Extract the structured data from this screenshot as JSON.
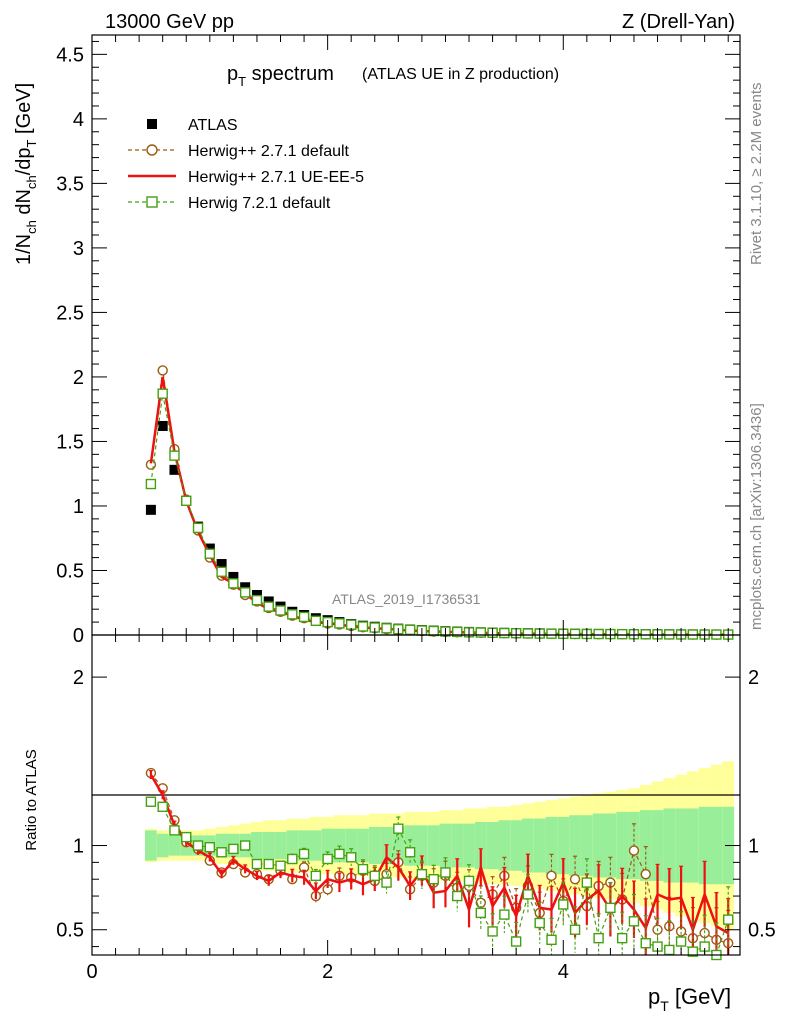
{
  "header": {
    "left": "13000 GeV pp",
    "right": "Z (Drell-Yan)"
  },
  "side_labels": {
    "rivet": "Rivet 3.1.10, ≥ 2.2M events",
    "mcplots": "mcplots.cern.ch [arXiv:1306.3436]"
  },
  "chart_data": [
    {
      "type": "scatter",
      "title_main": "p",
      "title_sub": "T",
      "title_rest": " spectrum",
      "title_note": "(ATLAS UE in Z production)",
      "watermark": "ATLAS_2019_I1736531",
      "ylabel": {
        "p1": "1/N",
        "s1": "ch",
        "p2": " dN",
        "s2": "ch",
        "p3": "/dp",
        "s3": "T",
        "p4": " [GeV]"
      },
      "xlim": [
        0,
        5.5
      ],
      "ylim": [
        0,
        4.65
      ],
      "yticks": [
        "0",
        "0.5",
        "1",
        "1.5",
        "2",
        "2.5",
        "3",
        "3.5",
        "4",
        "4.5"
      ],
      "legend_position": "top-left",
      "legend": [
        {
          "name": "ATLAS",
          "color": "#000000",
          "marker": "filled-square",
          "line": "none"
        },
        {
          "name": "Herwig++ 2.7.1 default",
          "color": "#9a5a10",
          "marker": "open-circle",
          "line": "dashed"
        },
        {
          "name": "Herwig++ 2.7.1 UE-EE-5",
          "color": "#ee1111",
          "marker": "none",
          "line": "solid"
        },
        {
          "name": "Herwig 7.2.1 default",
          "color": "#44a010",
          "marker": "open-square",
          "line": "dashed"
        }
      ],
      "x": [
        0.5,
        0.6,
        0.7,
        0.8,
        0.9,
        1.0,
        1.1,
        1.2,
        1.3,
        1.4,
        1.5,
        1.6,
        1.7,
        1.8,
        1.9,
        2.0,
        2.1,
        2.2,
        2.3,
        2.4,
        2.5,
        2.6,
        2.7,
        2.8,
        2.9,
        3.0,
        3.1,
        3.2,
        3.3,
        3.4,
        3.5,
        3.6,
        3.7,
        3.8,
        3.9,
        4.0,
        4.1,
        4.2,
        4.3,
        4.4,
        4.5,
        4.6,
        4.7,
        4.8,
        4.9,
        5.0,
        5.1,
        5.2,
        5.3,
        5.4
      ],
      "series": [
        {
          "name": "ATLAS",
          "values": [
            0.97,
            1.62,
            1.28,
            1.04,
            0.84,
            0.67,
            0.55,
            0.45,
            0.37,
            0.31,
            0.26,
            0.22,
            0.18,
            0.155,
            0.13,
            0.115,
            0.1,
            0.085,
            0.072,
            0.064,
            0.056,
            0.049,
            0.043,
            0.038,
            0.034,
            0.03,
            0.027,
            0.024,
            0.021,
            0.019,
            0.017,
            0.015,
            0.014,
            0.013,
            0.012,
            0.011,
            0.01,
            0.009,
            0.0085,
            0.008,
            0.0075,
            0.007,
            0.0065,
            0.006,
            0.0055,
            0.005,
            0.0048,
            0.0045,
            0.0042,
            0.004
          ]
        },
        {
          "name": "Herwig++ 2.7.1 default",
          "values": [
            1.32,
            2.05,
            1.44,
            1.05,
            0.81,
            0.6,
            0.46,
            0.39,
            0.31,
            0.26,
            0.21,
            0.18,
            0.15,
            0.13,
            0.11,
            0.09,
            0.082,
            0.07,
            0.06,
            0.052,
            0.045,
            0.04,
            0.035,
            0.031,
            0.027,
            0.024,
            0.021,
            0.019,
            0.017,
            0.015,
            0.014,
            0.012,
            0.011,
            0.01,
            0.009,
            0.008,
            0.0075,
            0.007,
            0.0065,
            0.006,
            0.0055,
            0.005,
            0.0045,
            0.0042,
            0.004,
            0.0038,
            0.0035,
            0.0032,
            0.003,
            0.0028
          ]
        },
        {
          "name": "Herwig++ 2.7.1 UE-EE-5",
          "values": [
            1.33,
            2.0,
            1.42,
            1.04,
            0.8,
            0.62,
            0.45,
            0.4,
            0.32,
            0.25,
            0.2,
            0.18,
            0.15,
            0.12,
            0.1,
            0.09,
            0.08,
            0.068,
            0.058,
            0.052,
            0.048,
            0.042,
            0.035,
            0.031,
            0.028,
            0.025,
            0.022,
            0.019,
            0.017,
            0.015,
            0.013,
            0.012,
            0.011,
            0.01,
            0.009,
            0.008,
            0.0075,
            0.007,
            0.0065,
            0.006,
            0.0055,
            0.005,
            0.0045,
            0.0042,
            0.004,
            0.0038,
            0.0035,
            0.0032,
            0.003,
            0.0028
          ]
        },
        {
          "name": "Herwig 7.2.1 default",
          "values": [
            1.17,
            1.87,
            1.39,
            1.04,
            0.83,
            0.63,
            0.49,
            0.4,
            0.33,
            0.27,
            0.22,
            0.19,
            0.16,
            0.14,
            0.11,
            0.1,
            0.09,
            0.08,
            0.066,
            0.058,
            0.052,
            0.045,
            0.04,
            0.035,
            0.031,
            0.027,
            0.024,
            0.021,
            0.019,
            0.017,
            0.015,
            0.014,
            0.012,
            0.011,
            0.01,
            0.009,
            0.0085,
            0.008,
            0.0075,
            0.007,
            0.0065,
            0.006,
            0.0055,
            0.005,
            0.0045,
            0.0042,
            0.004,
            0.0038,
            0.0035,
            0.0032
          ]
        }
      ]
    },
    {
      "type": "scatter",
      "xlabel_main": "p",
      "xlabel_sub": "T",
      "xlabel_unit": " [GeV]",
      "ylabel": "Ratio to ATLAS",
      "xlim": [
        0,
        5.5
      ],
      "ylim": [
        0.35,
        2.25
      ],
      "xticks": [
        "0",
        "2",
        "4"
      ],
      "yticks_left": [
        "0.5",
        "1",
        "2"
      ],
      "yticks_right": [
        "0.5",
        "1",
        "2"
      ],
      "x": [
        0.5,
        0.6,
        0.7,
        0.8,
        0.9,
        1.0,
        1.1,
        1.2,
        1.3,
        1.4,
        1.5,
        1.6,
        1.7,
        1.8,
        1.9,
        2.0,
        2.1,
        2.2,
        2.3,
        2.4,
        2.5,
        2.6,
        2.7,
        2.8,
        2.9,
        3.0,
        3.1,
        3.2,
        3.3,
        3.4,
        3.5,
        3.6,
        3.7,
        3.8,
        3.9,
        4.0,
        4.1,
        4.2,
        4.3,
        4.4,
        4.5,
        4.6,
        4.7,
        4.8,
        4.9,
        5.0,
        5.1,
        5.2,
        5.3,
        5.4
      ],
      "band_green_half": [
        0.09,
        0.07,
        0.06,
        0.06,
        0.06,
        0.06,
        0.07,
        0.07,
        0.07,
        0.08,
        0.08,
        0.08,
        0.09,
        0.09,
        0.09,
        0.1,
        0.1,
        0.1,
        0.1,
        0.11,
        0.11,
        0.11,
        0.12,
        0.12,
        0.12,
        0.13,
        0.13,
        0.13,
        0.14,
        0.14,
        0.15,
        0.15,
        0.16,
        0.16,
        0.17,
        0.17,
        0.18,
        0.18,
        0.19,
        0.19,
        0.2,
        0.2,
        0.21,
        0.21,
        0.22,
        0.22,
        0.22,
        0.23,
        0.23,
        0.23
      ],
      "band_yellow_half": [
        0.1,
        0.09,
        0.09,
        0.09,
        0.09,
        0.1,
        0.11,
        0.12,
        0.13,
        0.14,
        0.15,
        0.15,
        0.16,
        0.16,
        0.17,
        0.17,
        0.18,
        0.18,
        0.18,
        0.19,
        0.19,
        0.19,
        0.2,
        0.2,
        0.2,
        0.21,
        0.21,
        0.22,
        0.22,
        0.23,
        0.23,
        0.24,
        0.25,
        0.26,
        0.27,
        0.28,
        0.29,
        0.3,
        0.31,
        0.32,
        0.33,
        0.34,
        0.36,
        0.38,
        0.4,
        0.42,
        0.44,
        0.46,
        0.48,
        0.5
      ],
      "series": [
        {
          "name": "Herwig++ 2.7.1 default",
          "values": [
            1.43,
            1.34,
            1.15,
            1.02,
            0.98,
            0.91,
            0.84,
            0.89,
            0.84,
            0.83,
            0.8,
            0.85,
            0.8,
            0.87,
            0.7,
            0.74,
            0.82,
            0.81,
            0.85,
            0.79,
            0.83,
            0.9,
            0.74,
            0.82,
            0.78,
            0.82,
            0.75,
            0.76,
            0.66,
            0.71,
            0.82,
            0.63,
            0.76,
            0.6,
            0.82,
            0.67,
            0.8,
            0.64,
            0.76,
            0.78,
            0.68,
            0.97,
            0.83,
            0.5,
            0.52,
            0.49,
            0.45,
            0.48,
            0.44,
            0.42
          ]
        },
        {
          "name": "Herwig++ 2.7.1 UE-EE-5",
          "values": [
            1.42,
            1.3,
            1.12,
            1.02,
            0.97,
            0.93,
            0.83,
            0.91,
            0.86,
            0.82,
            0.79,
            0.84,
            0.82,
            0.81,
            0.73,
            0.8,
            0.78,
            0.8,
            0.77,
            0.8,
            0.93,
            0.87,
            0.76,
            0.85,
            0.72,
            0.73,
            0.82,
            0.62,
            0.87,
            0.64,
            0.75,
            0.58,
            0.82,
            0.63,
            0.62,
            0.78,
            0.6,
            0.68,
            0.73,
            0.62,
            0.7,
            0.62,
            0.51,
            0.71,
            0.68,
            0.69,
            0.5,
            0.71,
            0.52,
            0.48
          ]
        },
        {
          "name": "Herwig 7.2.1 default",
          "values": [
            1.26,
            1.23,
            1.09,
            1.05,
            1.0,
            0.99,
            0.96,
            0.98,
            1.0,
            0.89,
            0.89,
            0.88,
            0.92,
            0.95,
            0.82,
            0.92,
            0.95,
            0.93,
            0.86,
            0.82,
            0.78,
            1.1,
            0.96,
            0.83,
            0.8,
            0.84,
            0.7,
            0.79,
            0.6,
            0.49,
            0.59,
            0.43,
            0.71,
            0.54,
            0.44,
            0.65,
            0.5,
            0.78,
            0.45,
            0.63,
            0.45,
            0.55,
            0.42,
            0.4,
            0.38,
            0.43,
            0.37,
            0.4,
            0.35,
            0.56
          ]
        }
      ]
    }
  ]
}
